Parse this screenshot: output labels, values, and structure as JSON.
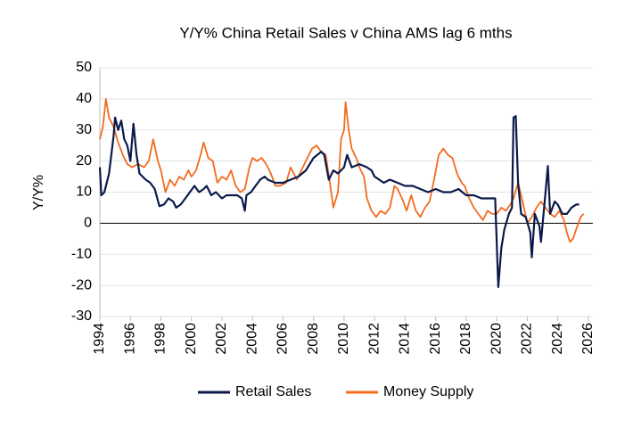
{
  "chart_data": {
    "type": "line",
    "title": "Y/Y% China Retail Sales v China AMS lag 6 mths",
    "y_label": "Y/Y%",
    "xlim": [
      1994,
      2026.3
    ],
    "xticks": [
      1994,
      1996,
      1998,
      2000,
      2002,
      2004,
      2006,
      2008,
      2010,
      2012,
      2014,
      2016,
      2018,
      2020,
      2022,
      2024,
      2026
    ],
    "ylim": [
      -30,
      50
    ],
    "yticks": [
      50,
      40,
      30,
      20,
      10,
      0,
      -10,
      -20,
      -30
    ],
    "grid": true,
    "legend": "bottom",
    "series": [
      {
        "name": "Retail Sales",
        "color": "#0b1a4a",
        "x": [
          1994.0,
          1994.1,
          1994.3,
          1994.6,
          1994.9,
          1995.0,
          1995.2,
          1995.4,
          1995.6,
          1995.8,
          1996.0,
          1996.2,
          1996.4,
          1996.6,
          1996.8,
          1997.0,
          1997.3,
          1997.6,
          1997.9,
          1998.2,
          1998.5,
          1998.8,
          1999.0,
          1999.3,
          1999.6,
          1999.9,
          2000.2,
          2000.5,
          2000.8,
          2001.0,
          2001.3,
          2001.6,
          2002.0,
          2002.3,
          2002.6,
          2003.0,
          2003.3,
          2003.5,
          2003.6,
          2003.9,
          2004.2,
          2004.5,
          2004.8,
          2005.0,
          2005.5,
          2006.0,
          2006.5,
          2007.0,
          2007.5,
          2008.0,
          2008.5,
          2008.7,
          2009.0,
          2009.3,
          2009.6,
          2010.0,
          2010.2,
          2010.5,
          2011.0,
          2011.5,
          2011.8,
          2012.0,
          2012.3,
          2012.6,
          2013.0,
          2013.5,
          2014.0,
          2014.5,
          2015.0,
          2015.5,
          2016.0,
          2016.5,
          2017.0,
          2017.5,
          2018.0,
          2018.5,
          2019.0,
          2019.5,
          2019.9,
          2020.1,
          2020.3,
          2020.5,
          2020.8,
          2021.0,
          2021.1,
          2021.25,
          2021.4,
          2021.6,
          2021.9,
          2022.2,
          2022.3,
          2022.5,
          2022.8,
          2022.9,
          2023.2,
          2023.35,
          2023.5,
          2023.8,
          2024.0,
          2024.3,
          2024.6,
          2024.9,
          2025.2,
          2025.4
        ],
        "values": [
          18,
          9,
          10,
          16,
          28,
          34,
          30,
          33,
          27,
          25,
          20,
          32,
          22,
          16,
          15,
          14,
          13,
          11,
          5.5,
          6,
          8,
          7,
          5,
          6,
          8,
          10,
          12,
          10,
          11,
          12,
          9,
          10,
          8,
          9,
          9,
          9,
          8,
          4,
          9,
          10,
          12,
          14,
          15,
          14,
          13,
          13,
          14,
          15,
          17,
          21,
          23,
          22,
          14,
          17,
          16,
          18,
          22,
          18,
          19,
          18,
          17,
          15,
          14,
          13,
          14,
          13,
          12,
          12,
          11,
          10,
          11,
          10,
          10,
          11,
          9,
          9,
          8,
          8,
          8,
          -20.5,
          -8,
          -2,
          3,
          5,
          34,
          34.5,
          13,
          3,
          2,
          -3,
          -11,
          3,
          -1,
          -6,
          10,
          18.4,
          3,
          7,
          6,
          3,
          3,
          5,
          6,
          6
        ]
      },
      {
        "name": "Money Supply",
        "color": "#f26b1d",
        "x": [
          1994.0,
          1994.2,
          1994.4,
          1994.6,
          1994.9,
          1995.2,
          1995.5,
          1995.8,
          1996.1,
          1996.5,
          1996.9,
          1997.2,
          1997.5,
          1997.8,
          1998.0,
          1998.3,
          1998.6,
          1998.9,
          1999.2,
          1999.5,
          1999.8,
          2000.0,
          2000.3,
          2000.6,
          2000.8,
          2001.1,
          2001.4,
          2001.7,
          2002.0,
          2002.3,
          2002.6,
          2002.9,
          2003.2,
          2003.5,
          2003.8,
          2004.0,
          2004.3,
          2004.6,
          2004.9,
          2005.2,
          2005.5,
          2005.8,
          2006.2,
          2006.5,
          2006.9,
          2007.3,
          2007.6,
          2007.9,
          2008.2,
          2008.5,
          2008.8,
          2009.1,
          2009.3,
          2009.6,
          2009.8,
          2010.0,
          2010.1,
          2010.3,
          2010.5,
          2010.8,
          2011.0,
          2011.3,
          2011.5,
          2011.8,
          2012.1,
          2012.4,
          2012.7,
          2013.0,
          2013.3,
          2013.5,
          2013.8,
          2014.1,
          2014.4,
          2014.7,
          2015.0,
          2015.3,
          2015.6,
          2015.9,
          2016.2,
          2016.5,
          2016.8,
          2017.1,
          2017.4,
          2017.7,
          2017.9,
          2018.2,
          2018.5,
          2018.8,
          2019.1,
          2019.4,
          2019.7,
          2020.0,
          2020.3,
          2020.6,
          2020.9,
          2021.1,
          2021.4,
          2021.7,
          2022.0,
          2022.3,
          2022.6,
          2022.9,
          2023.2,
          2023.5,
          2023.8,
          2024.1,
          2024.4,
          2024.6,
          2024.8,
          2025.0,
          2025.2,
          2025.5,
          2025.7
        ],
        "values": [
          27,
          31,
          40,
          34,
          31,
          26,
          22,
          19,
          18,
          19,
          18,
          20,
          27,
          20,
          17,
          10,
          14,
          12,
          15,
          14,
          17,
          15,
          17,
          22,
          26,
          21,
          20,
          13,
          15,
          14,
          17,
          12,
          10,
          11,
          18,
          21,
          20,
          21,
          19,
          16,
          12,
          12,
          13,
          18,
          14,
          18,
          21,
          24,
          25,
          23,
          22,
          12,
          5,
          10,
          27,
          30,
          39,
          30,
          24,
          21,
          18,
          15,
          8,
          4,
          2,
          4,
          3,
          5,
          12,
          11,
          8,
          4,
          9,
          4,
          2,
          5,
          7,
          14,
          22,
          24,
          22,
          21,
          16,
          13,
          12,
          8,
          5,
          3,
          1,
          4,
          3,
          3,
          5,
          4,
          6,
          8,
          13,
          7,
          0,
          2,
          5,
          7,
          5,
          3,
          2,
          4,
          1,
          -3,
          -6,
          -5,
          -2,
          2,
          3
        ]
      }
    ]
  }
}
